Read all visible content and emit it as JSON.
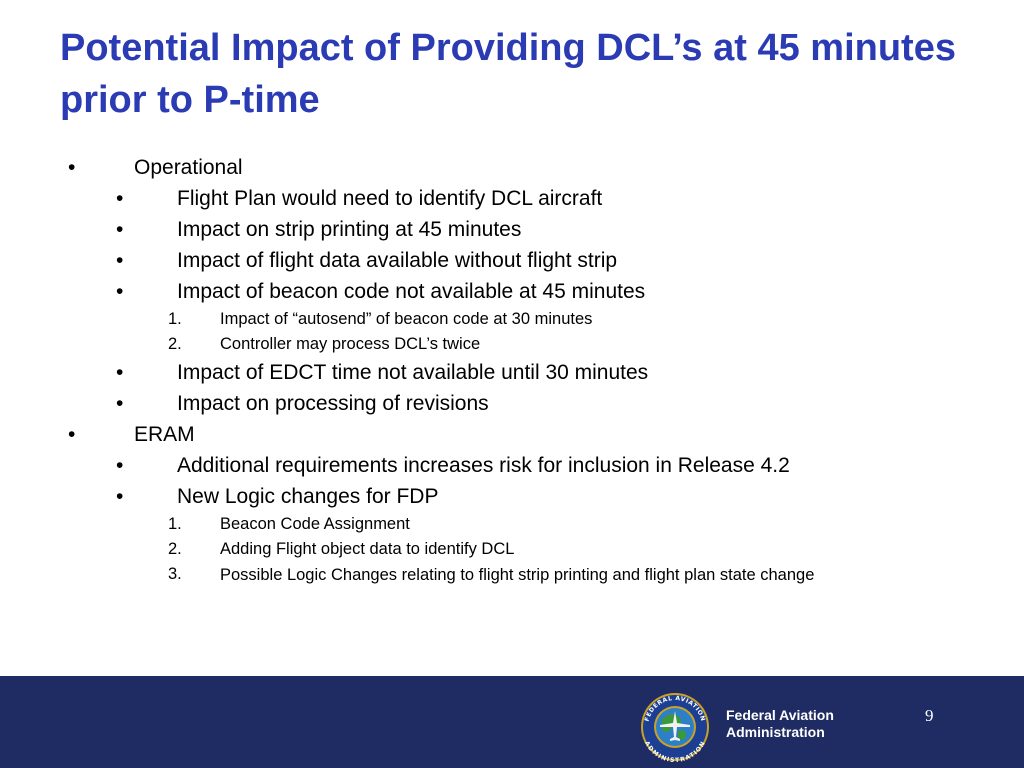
{
  "slide": {
    "title": "Potential Impact of Providing DCL’s at 45 minutes prior to P-time",
    "bullet_symbol": "•",
    "items": [
      {
        "level": 1,
        "marker": "•",
        "text": "Operational"
      },
      {
        "level": 2,
        "marker": "•",
        "text": "Flight Plan would need to identify DCL aircraft"
      },
      {
        "level": 2,
        "marker": "•",
        "text": "Impact on strip printing at 45 minutes"
      },
      {
        "level": 2,
        "marker": "•",
        "text": "Impact of flight data available without flight strip"
      },
      {
        "level": 2,
        "marker": "•",
        "text": "Impact of beacon code not available at 45 minutes"
      },
      {
        "level": 3,
        "marker": "1.",
        "text": "Impact of “autosend” of beacon code at 30 minutes"
      },
      {
        "level": 3,
        "marker": "2.",
        "text": "Controller may process DCL’s twice"
      },
      {
        "level": 2,
        "marker": "•",
        "text": "Impact of EDCT time not available until 30 minutes"
      },
      {
        "level": 2,
        "marker": "•",
        "text": "Impact on processing of revisions"
      },
      {
        "level": 1,
        "marker": "•",
        "text": "ERAM"
      },
      {
        "level": 2,
        "marker": "•",
        "text": "Additional requirements increases risk for inclusion in Release 4.2"
      },
      {
        "level": 2,
        "marker": "•",
        "text": "New Logic changes for FDP"
      },
      {
        "level": 3,
        "marker": "1.",
        "text": "Beacon Code Assignment"
      },
      {
        "level": 3,
        "marker": "2.",
        "text": "Adding Flight object data to identify DCL"
      },
      {
        "level": 3,
        "marker": "3.",
        "text": "Possible Logic Changes relating to flight strip printing and flight plan state change"
      }
    ]
  },
  "footer": {
    "seal_text_top": "FEDERAL AVIATION",
    "seal_text_bottom": "ADMINISTRATION",
    "agency_line1": "Federal Aviation",
    "agency_line2": "Administration",
    "page_number": "9"
  },
  "colors": {
    "title": "#2b3bb3",
    "footer_band": "#1f2b63",
    "text": "#000000"
  }
}
